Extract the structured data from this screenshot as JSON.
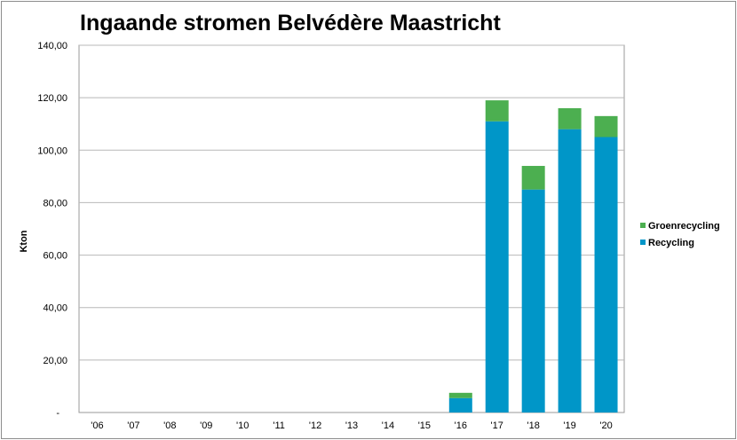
{
  "chart_data": {
    "type": "bar",
    "stacked": true,
    "title": "Ingaande stromen Belvédère Maastricht",
    "xlabel": "",
    "ylabel": "Kton",
    "categories": [
      "'06",
      "'07",
      "'08",
      "'09",
      "'10",
      "'11",
      "'12",
      "'13",
      "'14",
      "'15",
      "'16",
      "'17",
      "'18",
      "'19",
      "'20"
    ],
    "series": [
      {
        "name": "Recycling",
        "color": "#0096c8",
        "values": [
          0,
          0,
          0,
          0,
          0,
          0,
          0,
          0,
          0,
          0,
          5.5,
          111,
          85,
          108,
          105
        ]
      },
      {
        "name": "Groenrecycling",
        "color": "#4caf50",
        "values": [
          0,
          0,
          0,
          0,
          0,
          0,
          0,
          0,
          0,
          0,
          2,
          8,
          9,
          8,
          8
        ]
      }
    ],
    "ylim": [
      0,
      140
    ],
    "yticks": [
      0,
      20,
      40,
      60,
      80,
      100,
      120,
      140
    ],
    "ytick_labels": [
      "-",
      "20,00",
      "40,00",
      "60,00",
      "80,00",
      "100,00",
      "120,00",
      "140,00"
    ],
    "grid": true,
    "legend_position": "right",
    "legend": [
      "Groenrecycling",
      "Recycling"
    ]
  }
}
